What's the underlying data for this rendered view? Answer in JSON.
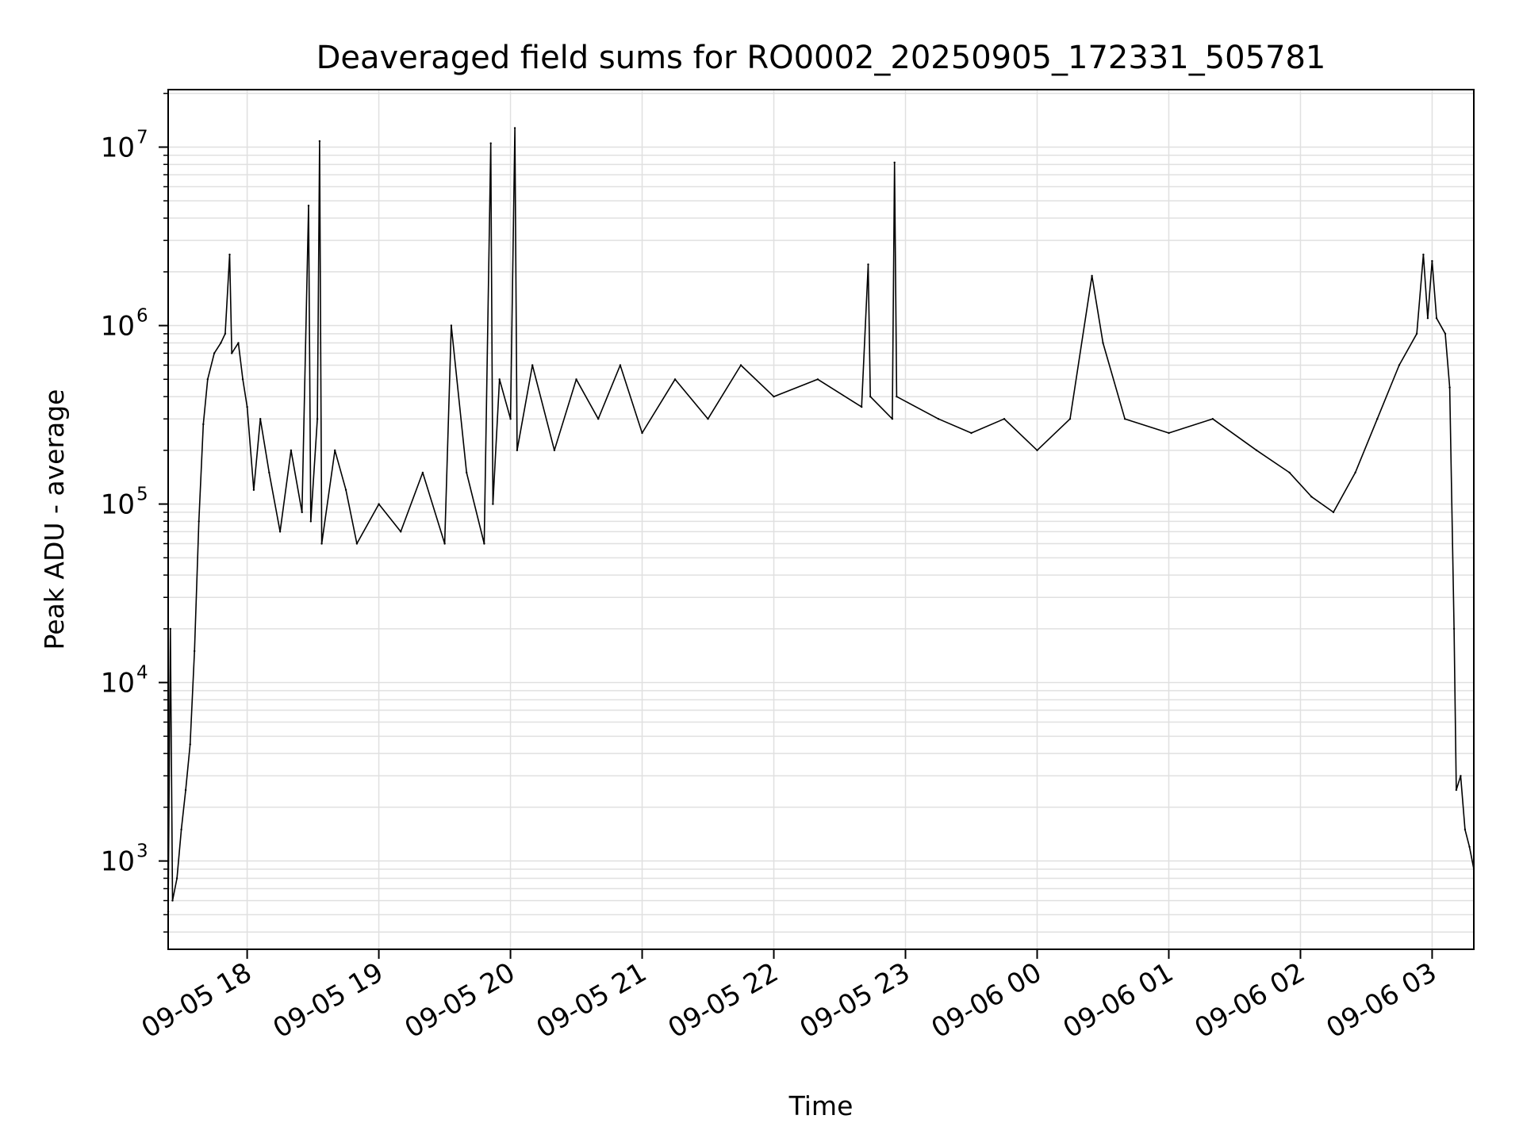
{
  "chart_data": {
    "type": "line",
    "title": "Deaveraged field sums for RO0002_20250905_172331_505781",
    "xlabel": "Time",
    "ylabel": "Peak ADU - average",
    "yscale": "log",
    "grid": true,
    "xlim": [
      "09-05 17:24",
      "09-06 03:19"
    ],
    "ylim": [
      320,
      21000000
    ],
    "x_ticks": [
      "09-05 18",
      "09-05 19",
      "09-05 20",
      "09-05 21",
      "09-05 22",
      "09-05 23",
      "09-06 00",
      "09-06 01",
      "09-06 02",
      "09-06 03"
    ],
    "y_ticks": [
      {
        "base": "10",
        "exp": "3",
        "value": 1000
      },
      {
        "base": "10",
        "exp": "4",
        "value": 10000
      },
      {
        "base": "10",
        "exp": "5",
        "value": 100000
      },
      {
        "base": "10",
        "exp": "6",
        "value": 1000000
      },
      {
        "base": "10",
        "exp": "7",
        "value": 10000000
      }
    ],
    "series": [
      {
        "color": "#000000",
        "points": [
          [
            "09-05 17:24",
            520
          ],
          [
            "09-05 17:25",
            20000
          ],
          [
            "09-05 17:26",
            600
          ],
          [
            "09-05 17:28",
            800
          ],
          [
            "09-05 17:30",
            1500
          ],
          [
            "09-05 17:32",
            2500
          ],
          [
            "09-05 17:34",
            4500
          ],
          [
            "09-05 17:36",
            15000
          ],
          [
            "09-05 17:38",
            80000
          ],
          [
            "09-05 17:40",
            280000
          ],
          [
            "09-05 17:42",
            500000
          ],
          [
            "09-05 17:45",
            700000
          ],
          [
            "09-05 17:48",
            800000
          ],
          [
            "09-05 17:50",
            900000
          ],
          [
            "09-05 17:52",
            2500000
          ],
          [
            "09-05 17:53",
            700000
          ],
          [
            "09-05 17:56",
            800000
          ],
          [
            "09-05 17:58",
            500000
          ],
          [
            "09-05 18:00",
            350000
          ],
          [
            "09-05 18:03",
            120000
          ],
          [
            "09-05 18:06",
            300000
          ],
          [
            "09-05 18:10",
            150000
          ],
          [
            "09-05 18:15",
            70000
          ],
          [
            "09-05 18:20",
            200000
          ],
          [
            "09-05 18:25",
            90000
          ],
          [
            "09-05 18:28",
            4700000
          ],
          [
            "09-05 18:29",
            80000
          ],
          [
            "09-05 18:32",
            300000
          ],
          [
            "09-05 18:33",
            10800000
          ],
          [
            "09-05 18:34",
            60000
          ],
          [
            "09-05 18:40",
            200000
          ],
          [
            "09-05 18:45",
            120000
          ],
          [
            "09-05 18:50",
            60000
          ],
          [
            "09-05 19:00",
            100000
          ],
          [
            "09-05 19:10",
            70000
          ],
          [
            "09-05 19:20",
            150000
          ],
          [
            "09-05 19:30",
            60000
          ],
          [
            "09-05 19:33",
            1000000
          ],
          [
            "09-05 19:40",
            150000
          ],
          [
            "09-05 19:48",
            60000
          ],
          [
            "09-05 19:51",
            10500000
          ],
          [
            "09-05 19:52",
            100000
          ],
          [
            "09-05 19:55",
            500000
          ],
          [
            "09-05 20:00",
            300000
          ],
          [
            "09-05 20:02",
            12800000
          ],
          [
            "09-05 20:03",
            200000
          ],
          [
            "09-05 20:10",
            600000
          ],
          [
            "09-05 20:20",
            200000
          ],
          [
            "09-05 20:30",
            500000
          ],
          [
            "09-05 20:40",
            300000
          ],
          [
            "09-05 20:50",
            600000
          ],
          [
            "09-05 21:00",
            250000
          ],
          [
            "09-05 21:15",
            500000
          ],
          [
            "09-05 21:30",
            300000
          ],
          [
            "09-05 21:45",
            600000
          ],
          [
            "09-05 22:00",
            400000
          ],
          [
            "09-05 22:20",
            500000
          ],
          [
            "09-05 22:40",
            350000
          ],
          [
            "09-05 22:43",
            2200000
          ],
          [
            "09-05 22:44",
            400000
          ],
          [
            "09-05 22:54",
            300000
          ],
          [
            "09-05 22:55",
            8200000
          ],
          [
            "09-05 22:56",
            400000
          ],
          [
            "09-05 23:15",
            300000
          ],
          [
            "09-05 23:30",
            250000
          ],
          [
            "09-05 23:45",
            300000
          ],
          [
            "09-06 00:00",
            200000
          ],
          [
            "09-06 00:15",
            300000
          ],
          [
            "09-06 00:25",
            1900000
          ],
          [
            "09-06 00:30",
            800000
          ],
          [
            "09-06 00:40",
            300000
          ],
          [
            "09-06 01:00",
            250000
          ],
          [
            "09-06 01:20",
            300000
          ],
          [
            "09-06 01:40",
            200000
          ],
          [
            "09-06 01:55",
            150000
          ],
          [
            "09-06 02:05",
            110000
          ],
          [
            "09-06 02:15",
            90000
          ],
          [
            "09-06 02:25",
            150000
          ],
          [
            "09-06 02:35",
            300000
          ],
          [
            "09-06 02:45",
            600000
          ],
          [
            "09-06 02:53",
            900000
          ],
          [
            "09-06 02:56",
            2500000
          ],
          [
            "09-06 02:58",
            1100000
          ],
          [
            "09-06 03:00",
            2300000
          ],
          [
            "09-06 03:02",
            1100000
          ],
          [
            "09-06 03:06",
            900000
          ],
          [
            "09-06 03:08",
            450000
          ],
          [
            "09-06 03:10",
            20000
          ],
          [
            "09-06 03:11",
            2500
          ],
          [
            "09-06 03:13",
            3000
          ],
          [
            "09-06 03:15",
            1500
          ],
          [
            "09-06 03:17",
            1200
          ],
          [
            "09-06 03:19",
            900
          ]
        ]
      }
    ]
  }
}
